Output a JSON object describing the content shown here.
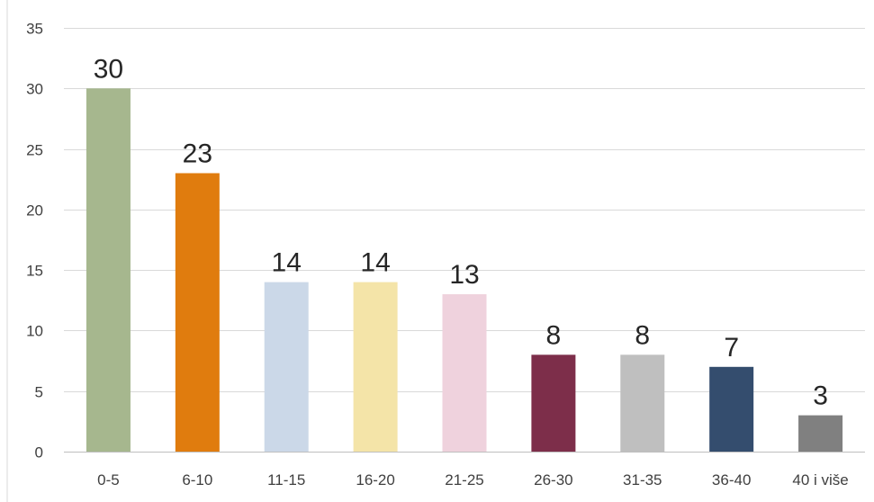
{
  "chart_data": {
    "type": "bar",
    "categories": [
      "0-5",
      "6-10",
      "11-15",
      "16-20",
      "21-25",
      "26-30",
      "31-35",
      "36-40",
      "40 i više"
    ],
    "values": [
      30,
      23,
      14,
      14,
      13,
      8,
      8,
      7,
      3
    ],
    "data_labels": [
      "30",
      "23",
      "14",
      "14",
      "13",
      "8",
      "8",
      "7",
      "3"
    ],
    "colors": [
      "#a6b78e",
      "#e07c0e",
      "#cbd8e8",
      "#f4e4a8",
      "#efd2dd",
      "#7d2e4a",
      "#bfbfbf",
      "#344d6e",
      "#808080"
    ],
    "ylim": [
      0,
      35
    ],
    "yticks": [
      0,
      5,
      10,
      15,
      20,
      25,
      30,
      35
    ],
    "ytick_labels": [
      "0",
      "5",
      "10",
      "15",
      "20",
      "25",
      "30",
      "35"
    ],
    "grid": true,
    "legend": "none"
  }
}
